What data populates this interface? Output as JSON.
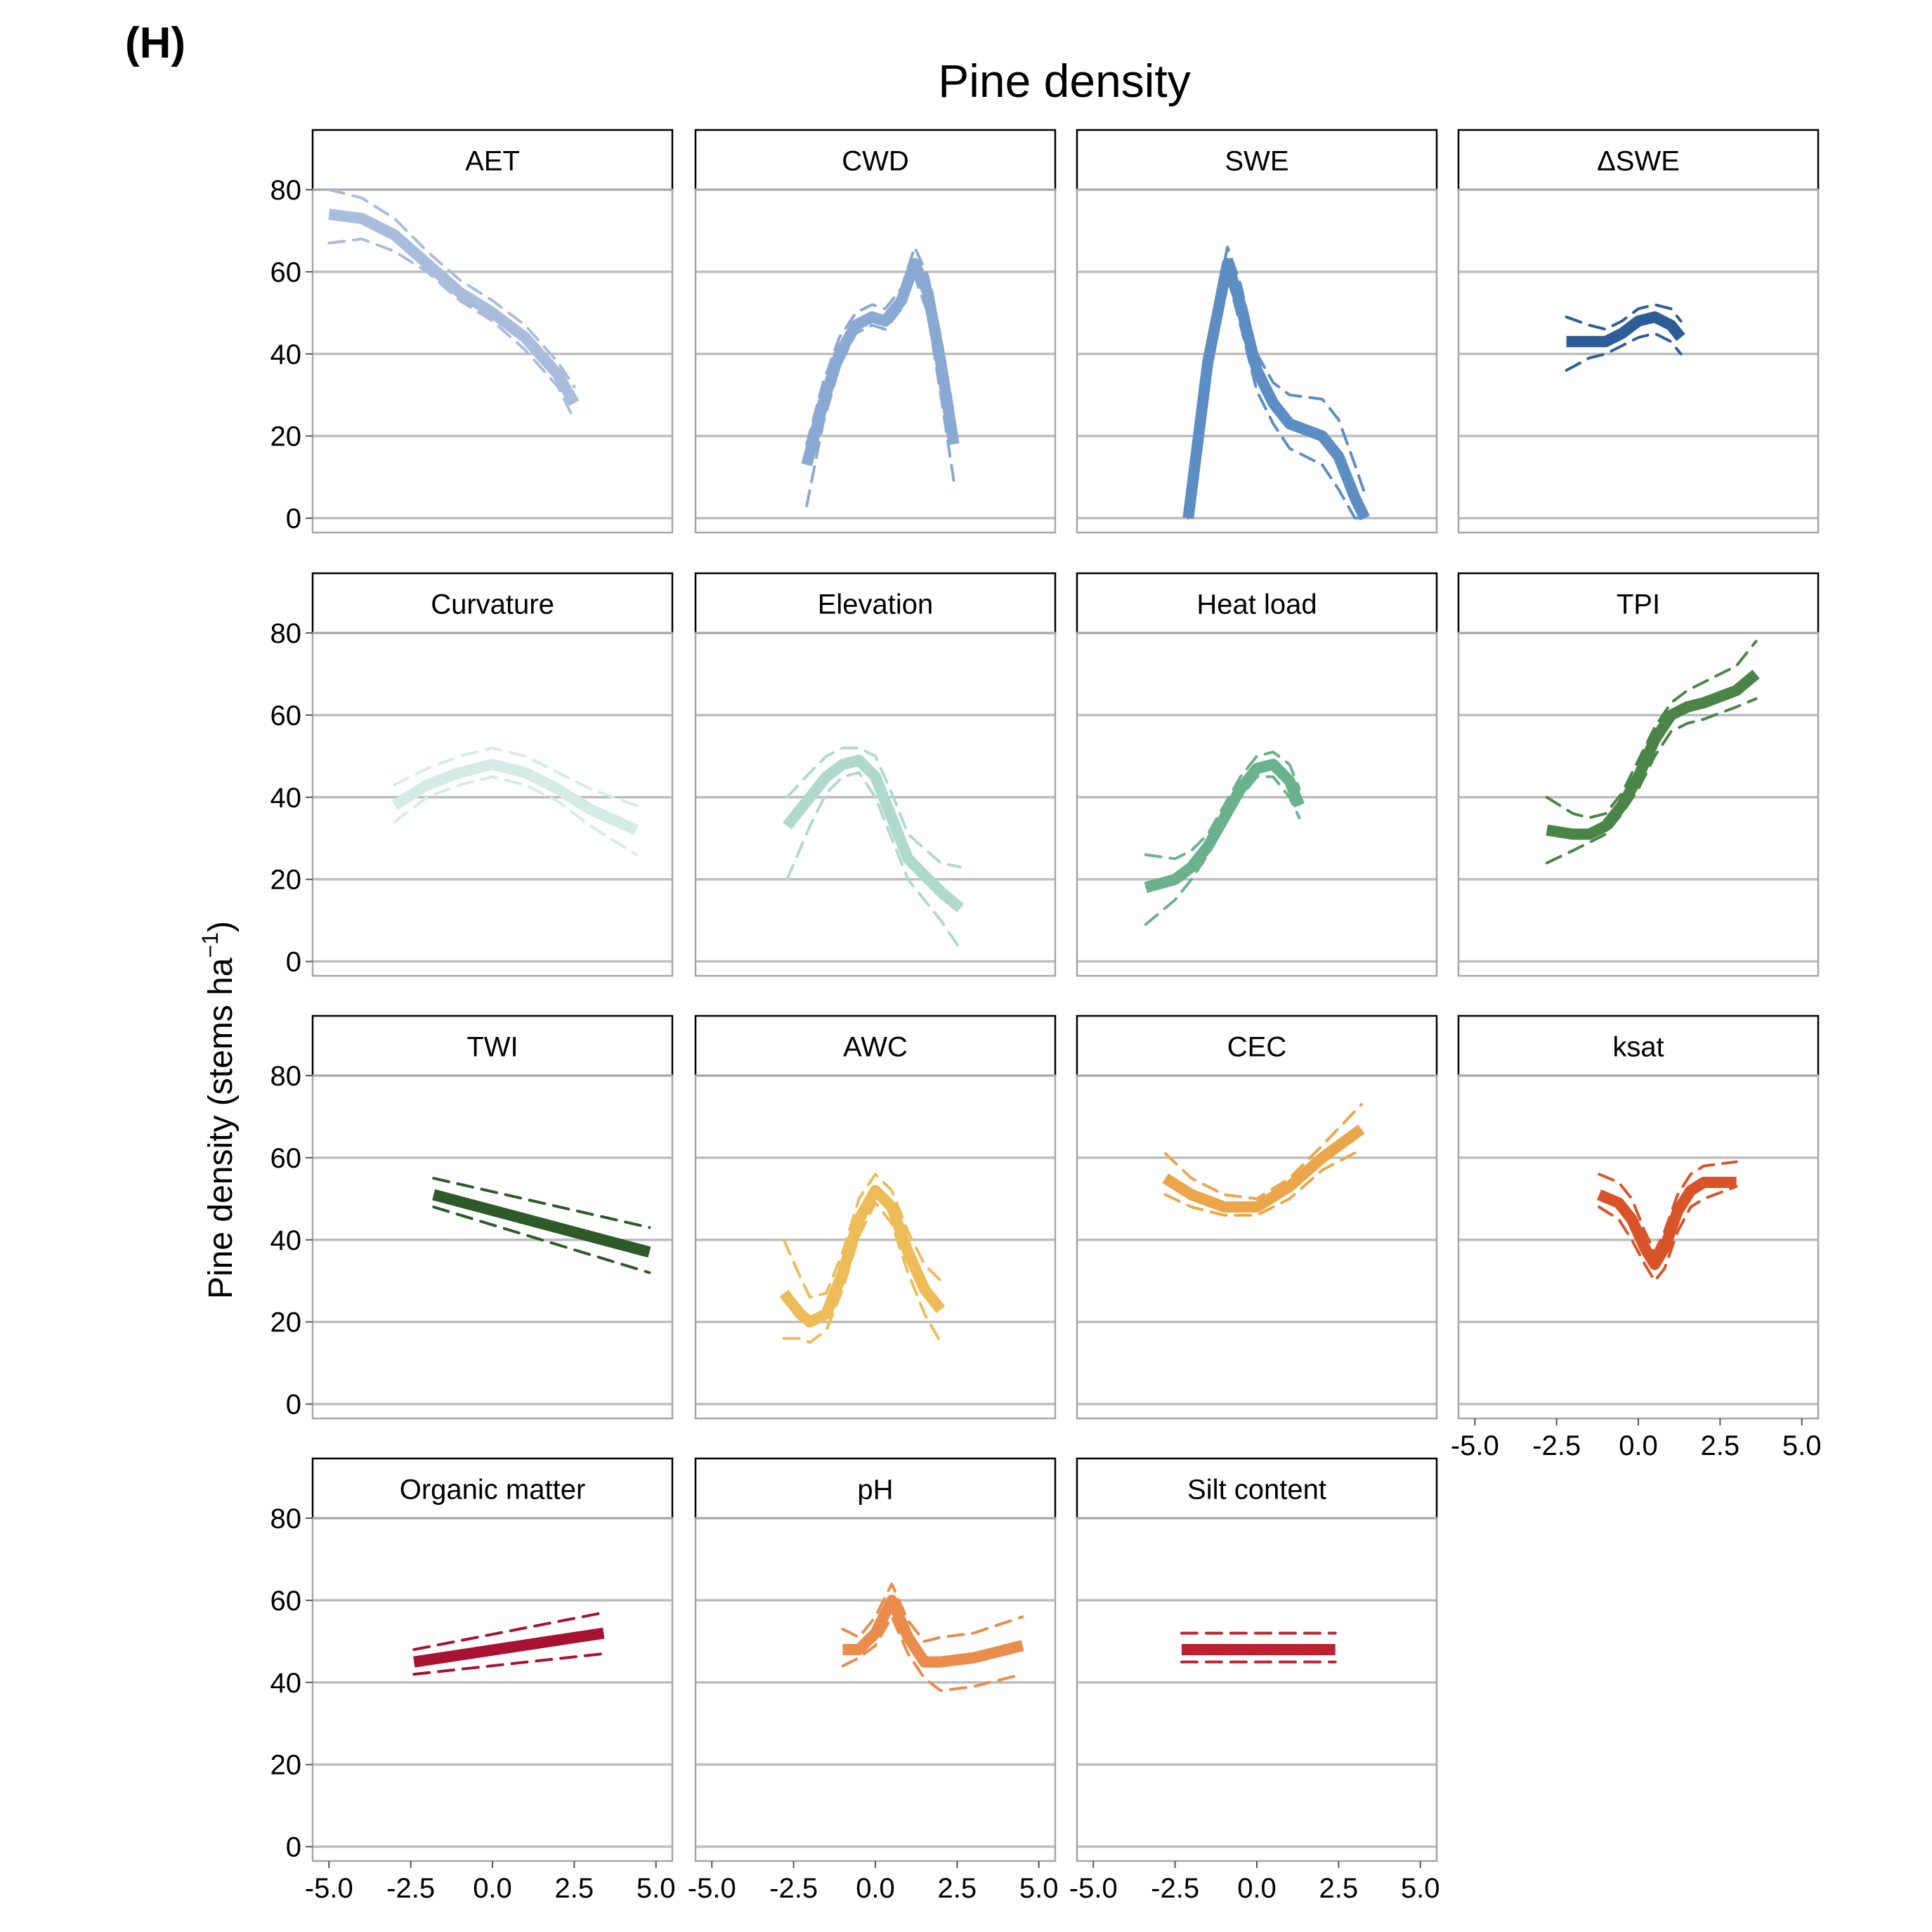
{
  "figure": {
    "panel_label": "(H)",
    "title": "Pine density",
    "ylabel": "Pine density (stems ha",
    "ylabel_superscript": "−1",
    "ylabel_close": ")"
  },
  "chart_data": {
    "type": "line",
    "layout": "facet-grid 4x4",
    "title": "Pine density",
    "ylabel": "Pine density (stems ha-1)",
    "xlabel": "",
    "xlim": [
      -5.5,
      5.5
    ],
    "ylim": [
      -3.5,
      80
    ],
    "xticks": [
      "-5.0",
      "-2.5",
      "0.0",
      "2.5",
      "5.0"
    ],
    "yticks": [
      "0",
      "20",
      "40",
      "60",
      "80"
    ],
    "grid": true,
    "facets": [
      {
        "name": "AET",
        "color": "#A9BCDC",
        "x": [
          -5,
          -4,
          -3,
          -2,
          -1,
          0,
          1,
          2,
          2.5
        ],
        "y": [
          74,
          73,
          69,
          62,
          55,
          50,
          44,
          35,
          28
        ],
        "lower": [
          67,
          68,
          65,
          60,
          53,
          48,
          41,
          32,
          24
        ],
        "upper": [
          80,
          78,
          73,
          65,
          58,
          53,
          47,
          38,
          32
        ]
      },
      {
        "name": "CWD",
        "color": "#8AA9D2",
        "x": [
          -2.1,
          -1.6,
          -1.1,
          -0.6,
          -0.1,
          0.3,
          0.8,
          1.2,
          1.6,
          2.0,
          2.4
        ],
        "y": [
          13,
          28,
          40,
          47,
          49,
          48,
          53,
          62,
          55,
          38,
          18
        ],
        "lower": [
          3,
          23,
          37,
          45,
          47,
          46,
          51,
          59,
          50,
          30,
          9
        ],
        "upper": [
          18,
          33,
          44,
          50,
          52,
          51,
          56,
          66,
          59,
          44,
          25
        ]
      },
      {
        "name": "SWE",
        "color": "#5C8EC3",
        "x": [
          -2.1,
          -1.5,
          -0.9,
          -0.5,
          0,
          0.5,
          1,
          2,
          2.5,
          3,
          3.3
        ],
        "y": [
          0,
          38,
          62,
          52,
          36,
          28,
          23,
          20,
          15,
          5,
          0
        ],
        "lower": [
          0,
          34,
          59,
          47,
          31,
          23,
          17,
          13,
          7,
          0,
          0
        ],
        "upper": [
          4,
          42,
          66,
          57,
          40,
          33,
          30,
          29,
          24,
          13,
          6
        ]
      },
      {
        "name": "ΔSWE",
        "color": "#2D5D97",
        "x": [
          -2.2,
          -1.5,
          -1,
          -0.5,
          0,
          0.5,
          1,
          1.3
        ],
        "y": [
          43,
          43,
          43,
          45,
          48,
          49,
          47,
          44
        ],
        "lower": [
          36,
          39,
          40,
          42,
          44,
          45,
          43,
          40
        ],
        "upper": [
          49,
          47,
          46,
          48,
          51,
          52,
          51,
          48
        ]
      },
      {
        "name": "Curvature",
        "color": "#D5ECE6",
        "x": [
          -3,
          -2,
          -1,
          0,
          1,
          2,
          3,
          4.4
        ],
        "y": [
          38,
          43,
          46,
          48,
          46,
          42,
          37,
          32
        ],
        "lower": [
          34,
          40,
          43,
          45,
          43,
          39,
          33,
          26
        ],
        "upper": [
          43,
          47,
          50,
          52,
          50,
          46,
          42,
          38
        ]
      },
      {
        "name": "Elevation",
        "color": "#AFD9CC",
        "x": [
          -2.7,
          -2,
          -1.5,
          -1,
          -0.5,
          0,
          0.5,
          1,
          2,
          2.6
        ],
        "y": [
          33,
          40,
          45,
          48,
          49,
          45,
          35,
          25,
          17,
          13
        ],
        "lower": [
          20,
          33,
          41,
          45,
          46,
          40,
          30,
          20,
          10,
          3
        ],
        "upper": [
          40,
          46,
          50,
          52,
          52,
          50,
          41,
          31,
          24,
          23
        ]
      },
      {
        "name": "Heat load",
        "color": "#6AB18D",
        "x": [
          -3.4,
          -2.5,
          -2,
          -1.5,
          -1,
          -0.5,
          0,
          0.5,
          1,
          1.3
        ],
        "y": [
          18,
          20,
          23,
          28,
          35,
          42,
          47,
          48,
          44,
          38
        ],
        "lower": [
          9,
          15,
          20,
          26,
          33,
          40,
          45,
          45,
          40,
          35
        ],
        "upper": [
          26,
          25,
          27,
          31,
          38,
          45,
          50,
          51,
          48,
          42
        ]
      },
      {
        "name": "TPI",
        "color": "#4A8547",
        "x": [
          -2.8,
          -2,
          -1.5,
          -1,
          -0.5,
          0,
          0.5,
          1,
          1.5,
          2,
          3,
          3.6
        ],
        "y": [
          32,
          31,
          31,
          33,
          38,
          45,
          54,
          60,
          62,
          63,
          66,
          70
        ],
        "lower": [
          24,
          27,
          29,
          31,
          36,
          42,
          50,
          56,
          58,
          59,
          62,
          64
        ],
        "upper": [
          40,
          36,
          35,
          36,
          41,
          49,
          57,
          63,
          66,
          68,
          72,
          78
        ]
      },
      {
        "name": "TWI",
        "color": "#2E5A2A",
        "x": [
          -1.8,
          4.8
        ],
        "y": [
          51,
          37
        ],
        "lower": [
          48,
          32
        ],
        "upper": [
          55,
          43
        ]
      },
      {
        "name": "AWC",
        "color": "#EDBC58",
        "x": [
          -2.8,
          -2.3,
          -2,
          -1.5,
          -1,
          -0.5,
          0,
          0.5,
          1,
          1.5,
          2
        ],
        "y": [
          27,
          22,
          20,
          22,
          32,
          45,
          52,
          48,
          37,
          28,
          23
        ],
        "lower": [
          16,
          16,
          15,
          18,
          28,
          41,
          49,
          44,
          32,
          22,
          15
        ],
        "upper": [
          40,
          31,
          26,
          27,
          37,
          50,
          56,
          52,
          42,
          34,
          30
        ]
      },
      {
        "name": "CEC",
        "color": "#EBA64C",
        "x": [
          -2.8,
          -2,
          -1,
          0,
          1,
          2,
          3.2
        ],
        "y": [
          55,
          51,
          48,
          48,
          53,
          60,
          67
        ],
        "lower": [
          51,
          48,
          46,
          46,
          50,
          57,
          62
        ],
        "upper": [
          61,
          55,
          51,
          50,
          55,
          63,
          73
        ]
      },
      {
        "name": "ksat",
        "color": "#D85428",
        "x": [
          -1.2,
          -0.6,
          -0.2,
          0.2,
          0.5,
          0.8,
          1.2,
          1.6,
          2,
          3
        ],
        "y": [
          51,
          49,
          45,
          38,
          34,
          38,
          47,
          52,
          54,
          54
        ],
        "lower": [
          48,
          45,
          40,
          34,
          30,
          33,
          42,
          48,
          50,
          53
        ],
        "upper": [
          56,
          54,
          50,
          42,
          37,
          42,
          51,
          56,
          58,
          59
        ]
      },
      {
        "name": "Organic matter",
        "color": "#A81232",
        "x": [
          -2.4,
          3.4
        ],
        "y": [
          45,
          52
        ],
        "lower": [
          42,
          47
        ],
        "upper": [
          48,
          57
        ]
      },
      {
        "name": "pH",
        "color": "#E98C4C",
        "x": [
          -1,
          -0.5,
          0,
          0.5,
          1,
          1.5,
          2,
          3,
          4.5
        ],
        "y": [
          48,
          48,
          52,
          60,
          51,
          45,
          45,
          46,
          49
        ],
        "lower": [
          44,
          46,
          49,
          56,
          47,
          41,
          38,
          39,
          42
        ],
        "upper": [
          53,
          51,
          56,
          64,
          55,
          50,
          51,
          52,
          56
        ]
      },
      {
        "name": "Silt content",
        "color": "#BE2232",
        "x": [
          -2.3,
          2.4
        ],
        "y": [
          48,
          48
        ],
        "lower": [
          45,
          45
        ],
        "upper": [
          52,
          52
        ]
      }
    ]
  }
}
